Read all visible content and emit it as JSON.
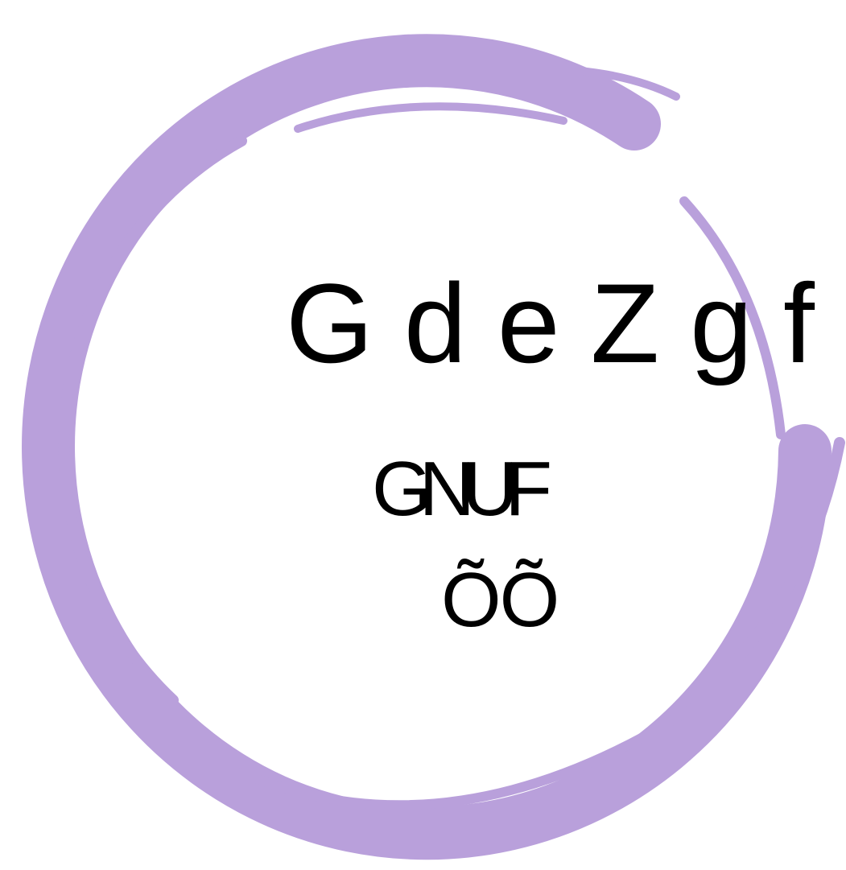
{
  "logo": {
    "title": "GdeZgf",
    "subtitle": "GNUF",
    "tagline": "ÕÕ"
  }
}
